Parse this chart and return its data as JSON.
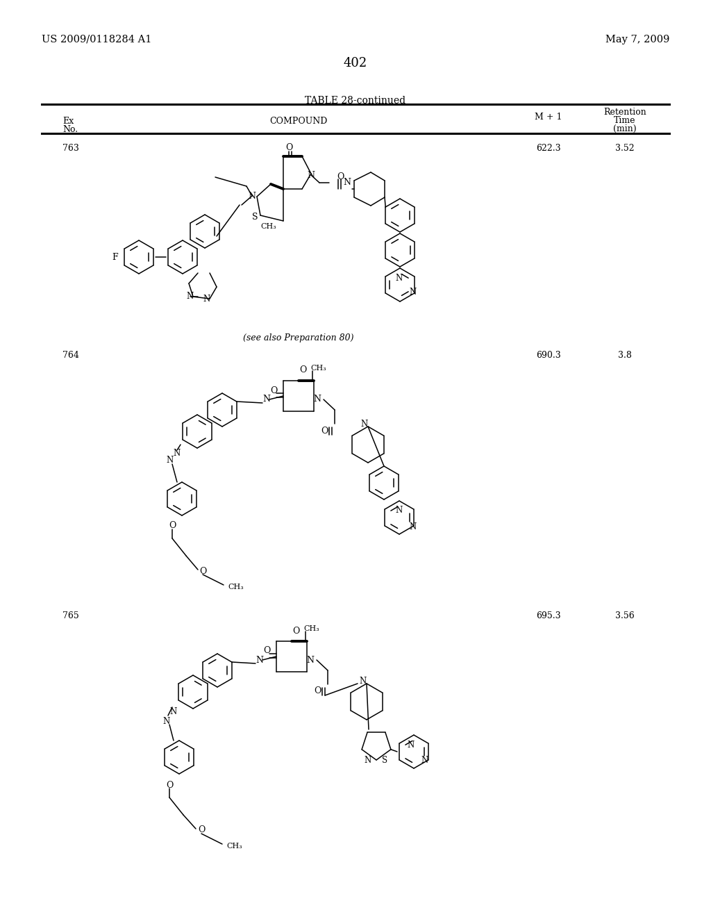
{
  "patent_number": "US 2009/0118284 A1",
  "date": "May 7, 2009",
  "page_number": "402",
  "table_title": "TABLE 28-continued",
  "background_color": "#f0f0f0",
  "page_bg": "#ffffff",
  "rows": [
    {
      "ex": "763",
      "m1": "622.3",
      "rt": "3.52"
    },
    {
      "ex": "764",
      "m1": "690.3",
      "rt": "3.8"
    },
    {
      "ex": "765",
      "m1": "695.3",
      "rt": "3.56"
    }
  ],
  "note": "(see also Preparation 80)"
}
